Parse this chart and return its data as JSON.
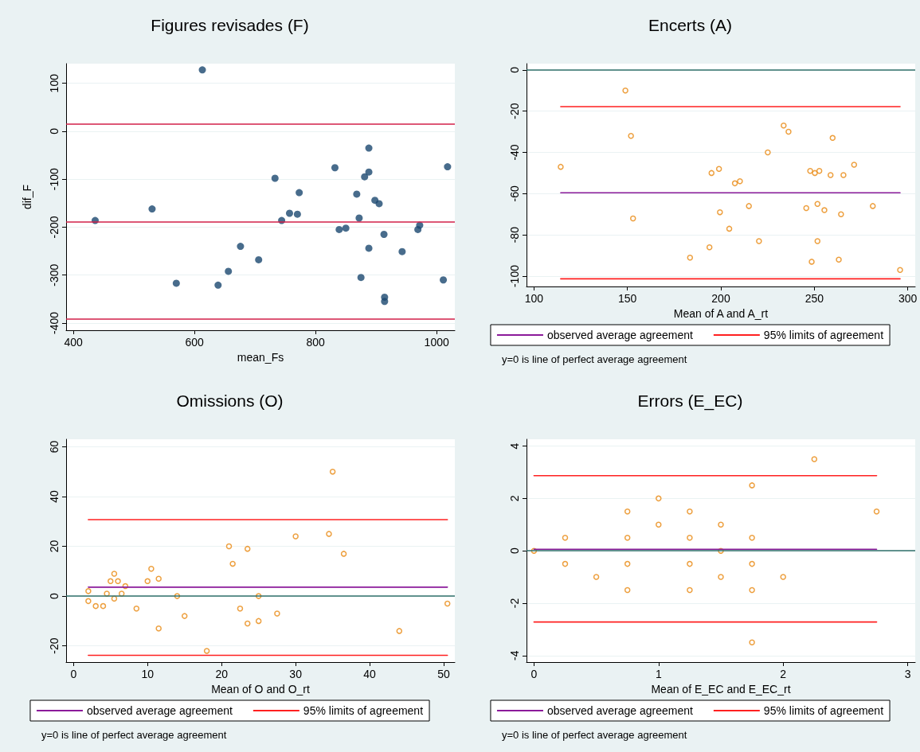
{
  "chart_data": [
    {
      "type": "scatter",
      "title": "Figures revisades (F)",
      "xlabel": "mean_Fs",
      "ylabel": "dif_F",
      "marker": "circle",
      "grid": "y",
      "legend": false,
      "xlim": [
        388,
        1030
      ],
      "xticks": [
        400,
        600,
        800,
        1000
      ],
      "ylim": [
        -415,
        141
      ],
      "yticks": [
        -400,
        -300,
        -200,
        -100,
        0,
        100
      ],
      "series": [
        {
          "color": "#1a476f",
          "x": [
            436,
            530,
            570,
            613,
            639,
            656,
            676,
            706,
            733,
            744,
            757,
            770,
            773,
            832,
            839,
            850,
            868,
            872,
            875,
            881,
            888,
            888,
            888,
            898,
            905,
            913,
            914,
            914,
            943,
            969,
            972,
            1011,
            1018
          ],
          "values": [
            -186,
            -162,
            -317,
            128,
            -321,
            -292,
            -240,
            -268,
            -98,
            -186,
            -171,
            -173,
            -128,
            -76,
            -205,
            -202,
            -131,
            -181,
            -305,
            -95,
            -35,
            -85,
            -244,
            -144,
            -151,
            -215,
            -346,
            -355,
            -251,
            -205,
            -196,
            -310,
            -74
          ]
        }
      ],
      "ref_lines": [
        {
          "axis": "y",
          "value": 15,
          "color": "#d21f48"
        },
        {
          "axis": "y",
          "value": -189,
          "color": "#d21f48"
        },
        {
          "axis": "y",
          "value": -391,
          "color": "#d21f48"
        }
      ]
    },
    {
      "type": "scatter",
      "title": "Encerts (A)",
      "xlabel": "Mean of A and A_rt",
      "marker": "circle",
      "grid": "y",
      "legend": "bottom",
      "annotations": [
        "y=0 is line of perfect average agreement"
      ],
      "xlim": [
        96,
        304
      ],
      "xticks": [
        100,
        150,
        200,
        250,
        300
      ],
      "ylim": [
        -105,
        3
      ],
      "yticks": [
        -100,
        -80,
        -60,
        -40,
        -20,
        0
      ],
      "series": [
        {
          "color": "#e8870e",
          "x": [
            114.3,
            148.9,
            151.9,
            153,
            183.5,
            193.9,
            195,
            199,
            199.5,
            204.5,
            207.5,
            210.2,
            215,
            220.4,
            225.1,
            233.6,
            236.2,
            245.7,
            247.8,
            248.6,
            250.3,
            251.7,
            251.7,
            252.7,
            255.4,
            258.7,
            259.8,
            263.1,
            264.3,
            265.6,
            271.3,
            281.3,
            295.9
          ],
          "values": [
            -47,
            -10,
            -32,
            -72,
            -91,
            -86,
            -50,
            -48,
            -69,
            -77,
            -55,
            -54,
            -66,
            -83,
            -40,
            -27,
            -30,
            -67,
            -49,
            -93,
            -50,
            -65,
            -83,
            -49,
            -68,
            -51,
            -33,
            -92,
            -70,
            -51,
            -46,
            -66,
            -97
          ]
        },
        {
          "type": "line",
          "name": "observed average agreement",
          "color": "#8b1a9a",
          "marker": "none",
          "x": [
            114.3,
            295.9
          ],
          "values": [
            -59.6,
            -59.6
          ]
        },
        {
          "type": "line",
          "name": "95% limits of agreement",
          "color": "#ff2020",
          "marker": "none",
          "x": [
            114.3,
            295.9
          ],
          "values": [
            -17.8,
            -17.8
          ]
        },
        {
          "type": "line",
          "color": "#ff2020",
          "marker": "none",
          "x": [
            114.3,
            295.9
          ],
          "values": [
            -101.3,
            -101.3
          ]
        }
      ],
      "ref_lines": [
        {
          "axis": "y",
          "value": 0,
          "color": "#2f6f6a"
        }
      ]
    },
    {
      "type": "scatter",
      "title": "Omissions (O)",
      "xlabel": "Mean of O and O_rt",
      "marker": "circle",
      "grid": "y",
      "legend": "bottom",
      "annotations": [
        "y=0 is line of perfect average agreement"
      ],
      "xlim": [
        -1,
        51.5
      ],
      "xticks": [
        0,
        10,
        20,
        30,
        40,
        50
      ],
      "ylim": [
        -26.5,
        63
      ],
      "yticks": [
        -20,
        0,
        20,
        40,
        60
      ],
      "series": [
        {
          "color": "#e8870e",
          "x": [
            2,
            2,
            3,
            4,
            4.5,
            5,
            5.5,
            5.5,
            6,
            6.5,
            7,
            8.5,
            10,
            10.5,
            11.5,
            11.5,
            14,
            15,
            18,
            21,
            21.5,
            22.5,
            23.5,
            23.5,
            25,
            25,
            27.5,
            30,
            34.5,
            35,
            36.5,
            44,
            50.5
          ],
          "values": [
            2,
            -2,
            -4,
            -4,
            1,
            6,
            9,
            -1,
            6,
            1,
            4,
            -5,
            6,
            11,
            7,
            -13,
            0,
            -8,
            -22,
            20,
            13,
            -5,
            19,
            -11,
            0,
            -10,
            -7,
            24,
            25,
            50,
            17,
            -14,
            -3
          ]
        },
        {
          "type": "line",
          "name": "observed average agreement",
          "color": "#8b1a9a",
          "marker": "none",
          "x": [
            2,
            50.5
          ],
          "values": [
            3.6,
            3.6
          ]
        },
        {
          "type": "line",
          "name": "95% limits of agreement",
          "color": "#ff2020",
          "marker": "none",
          "x": [
            2,
            50.5
          ],
          "values": [
            30.7,
            30.7
          ]
        },
        {
          "type": "line",
          "color": "#ff2020",
          "marker": "none",
          "x": [
            2,
            50.5
          ],
          "values": [
            -23.8,
            -23.8
          ]
        }
      ],
      "ref_lines": [
        {
          "axis": "y",
          "value": 0,
          "color": "#2f6f6a"
        }
      ]
    },
    {
      "type": "scatter",
      "title": "Errors (E_EC)",
      "xlabel": "Mean of E_EC and E_EC_rt",
      "marker": "circle",
      "grid": "y",
      "legend": "bottom",
      "annotations": [
        "y=0 is line of perfect average agreement"
      ],
      "xlim": [
        -0.06,
        3.06
      ],
      "xticks": [
        0,
        1,
        2,
        3
      ],
      "ylim": [
        -4.25,
        4.26
      ],
      "yticks": [
        -4,
        -2,
        0,
        2,
        4
      ],
      "series": [
        {
          "color": "#e8870e",
          "x": [
            0,
            0.25,
            0.25,
            0.5,
            0.75,
            0.75,
            0.75,
            0.75,
            1,
            1,
            1.25,
            1.25,
            1.25,
            1.25,
            1.5,
            1.5,
            1.5,
            1.75,
            1.75,
            1.75,
            1.75,
            1.75,
            2,
            2.25,
            2.75
          ],
          "values": [
            0,
            0.5,
            -0.5,
            -1,
            1.5,
            0.5,
            -0.5,
            -1.5,
            2,
            1,
            1.5,
            0.5,
            -0.5,
            -1.5,
            1,
            0,
            -1,
            2.5,
            0.5,
            -0.5,
            -1.5,
            -3.5,
            -1,
            3.5,
            1.5
          ]
        },
        {
          "type": "line",
          "name": "observed average agreement",
          "color": "#8b1a9a",
          "marker": "none",
          "x": [
            0,
            2.75
          ],
          "values": [
            0.06,
            0.06
          ]
        },
        {
          "type": "line",
          "name": "95% limits of agreement",
          "color": "#ff2020",
          "marker": "none",
          "x": [
            0,
            2.75
          ],
          "values": [
            2.87,
            2.87
          ]
        },
        {
          "type": "line",
          "color": "#ff2020",
          "marker": "none",
          "x": [
            0,
            2.75
          ],
          "values": [
            -2.72,
            -2.72
          ]
        }
      ],
      "ref_lines": [
        {
          "axis": "y",
          "value": 0,
          "color": "#2f6f6a"
        }
      ]
    }
  ]
}
